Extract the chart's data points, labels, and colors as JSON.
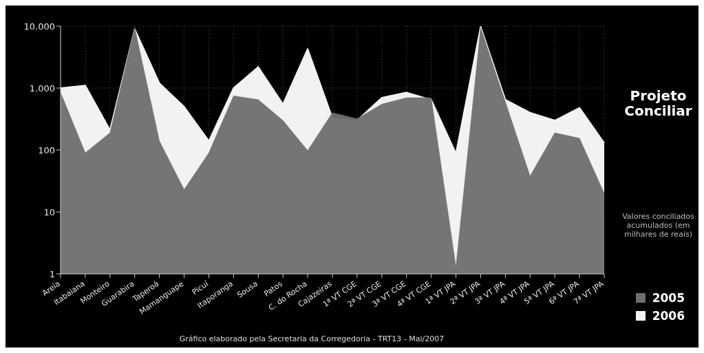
{
  "chart_data": {
    "type": "area",
    "title": "Projeto Conciliar",
    "subtitle": "Valores conciliados acumulados (em milhares de reais)",
    "annotations": [
      "Gráfico elaborado pela Secretaria da Corregedoria - TRT13 - Mai/2007"
    ],
    "categories": [
      "Areia",
      "Itabaiana",
      "Monteiro",
      "Guarabira",
      "Taperoá",
      "Mamanguape",
      "Picuí",
      "Itaporanga",
      "Sousa",
      "Patos",
      "C. do Rocha",
      "Cajazeiras",
      "1ª VT CGE",
      "2ª VT CGE",
      "3ª VT CGE",
      "4ª VT CGE",
      "1ª VT JPA",
      "2ª VT JPA",
      "3ª VT JPA",
      "4ª VT JPA",
      "5ª VT JPA",
      "6ª VT JPA",
      "7ª VT JPA"
    ],
    "series": [
      {
        "name": "2006",
        "color": "#f2f2f2",
        "values": [
          1000,
          1100,
          210,
          9000,
          1200,
          500,
          140,
          1000,
          2200,
          550,
          4300,
          330,
          300,
          700,
          850,
          650,
          88,
          9800,
          650,
          400,
          300,
          480,
          130
        ]
      },
      {
        "name": "2005",
        "color": "#6e6e6e",
        "values": [
          850,
          90,
          190,
          9500,
          140,
          23,
          90,
          750,
          650,
          300,
          98,
          400,
          320,
          550,
          700,
          700,
          1.3,
          9500,
          600,
          38,
          190,
          155,
          20
        ]
      }
    ],
    "log": "y",
    "ylim": [
      1,
      10000
    ],
    "yticks": [
      {
        "value": 1,
        "label": "1"
      },
      {
        "value": 10,
        "label": "10"
      },
      {
        "value": 100,
        "label": "100"
      },
      {
        "value": 1000,
        "label": "1.000"
      },
      {
        "value": 10000,
        "label": "10.000"
      }
    ],
    "grid": true,
    "legend": "bottom right"
  }
}
